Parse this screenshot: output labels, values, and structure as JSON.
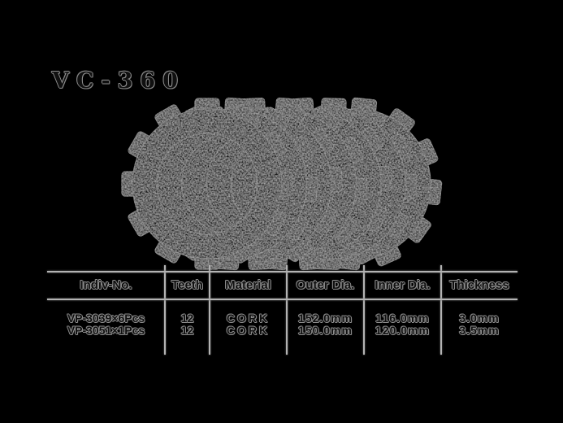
{
  "title": "VC-360",
  "image": {
    "description": "overlapping-clutch-friction-plates",
    "plate_count": 7,
    "teeth_per_plate": 12
  },
  "table": {
    "columns": [
      "Indiv-No.",
      "Teeth",
      "Material",
      "Outer Dia.",
      "Inner Dia.",
      "Thickness"
    ],
    "rows": [
      {
        "indiv_no": "VP-3039×6Pcs",
        "teeth": "12",
        "material": "CORK",
        "outer_dia": "152.0mm",
        "inner_dia": "116.0mm",
        "thickness": "3.0mm"
      },
      {
        "indiv_no": "VP-3051×1Pcs",
        "teeth": "12",
        "material": "CORK",
        "outer_dia": "150.0mm",
        "inner_dia": "120.0mm",
        "thickness": "3.5mm"
      }
    ]
  },
  "colors": {
    "background": "#000000",
    "table_line": "#b3b3b3",
    "text_core": "#101010",
    "text_halo": "#909090",
    "plate_ring": "#383838",
    "plate_tab": "#454545",
    "plate_rim": "#6a6a6a",
    "plate_groove": "#171717"
  }
}
